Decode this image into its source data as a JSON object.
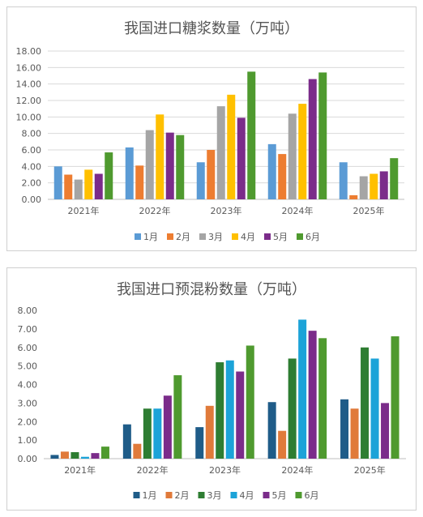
{
  "chart_data": [
    {
      "type": "bar",
      "title": "我国进口糖浆数量（万吨）",
      "categories": [
        "2021年",
        "2022年",
        "2023年",
        "2024年",
        "2025年"
      ],
      "ylim": [
        0,
        18
      ],
      "yticks": [
        "0.00",
        "2.00",
        "4.00",
        "6.00",
        "8.00",
        "10.00",
        "12.00",
        "14.00",
        "16.00",
        "18.00"
      ],
      "grid": true,
      "legend_position": "bottom",
      "series": [
        {
          "name": "1月",
          "color": "#5b9bd5",
          "values": [
            4.0,
            6.3,
            4.5,
            6.7,
            4.5
          ]
        },
        {
          "name": "2月",
          "color": "#ed7d31",
          "values": [
            3.0,
            4.1,
            6.0,
            5.5,
            0.5
          ]
        },
        {
          "name": "3月",
          "color": "#a5a5a5",
          "values": [
            2.4,
            8.4,
            11.3,
            10.4,
            2.8
          ]
        },
        {
          "name": "4月",
          "color": "#ffc000",
          "values": [
            3.6,
            10.3,
            12.7,
            11.6,
            3.1
          ]
        },
        {
          "name": "5月",
          "color": "#7b2c8a",
          "values": [
            3.1,
            8.1,
            9.9,
            14.6,
            3.4
          ]
        },
        {
          "name": "6月",
          "color": "#4f9a2f",
          "values": [
            5.7,
            7.8,
            15.5,
            15.4,
            5.0
          ]
        }
      ]
    },
    {
      "type": "bar",
      "title": "我国进口预混粉数量（万吨）",
      "categories": [
        "2021年",
        "2022年",
        "2023年",
        "2024年",
        "2025年"
      ],
      "ylim": [
        0,
        8
      ],
      "yticks": [
        "0.00",
        "1.00",
        "2.00",
        "3.00",
        "4.00",
        "5.00",
        "6.00",
        "7.00",
        "8.00"
      ],
      "grid": false,
      "legend_position": "bottom",
      "series": [
        {
          "name": "1月",
          "color": "#1f5c88",
          "values": [
            0.2,
            1.85,
            1.7,
            3.05,
            3.2
          ]
        },
        {
          "name": "2月",
          "color": "#e07a3a",
          "values": [
            0.38,
            0.8,
            2.85,
            1.5,
            2.7
          ]
        },
        {
          "name": "3月",
          "color": "#2e7d32",
          "values": [
            0.35,
            2.7,
            5.2,
            5.4,
            6.0
          ]
        },
        {
          "name": "4月",
          "color": "#1ca3d8",
          "values": [
            0.1,
            2.7,
            5.3,
            7.5,
            5.4
          ]
        },
        {
          "name": "5月",
          "color": "#7b2c8a",
          "values": [
            0.3,
            3.4,
            4.7,
            6.9,
            3.0
          ]
        },
        {
          "name": "6月",
          "color": "#4f9a2f",
          "values": [
            0.65,
            4.5,
            6.1,
            6.5,
            6.6
          ]
        }
      ]
    }
  ]
}
